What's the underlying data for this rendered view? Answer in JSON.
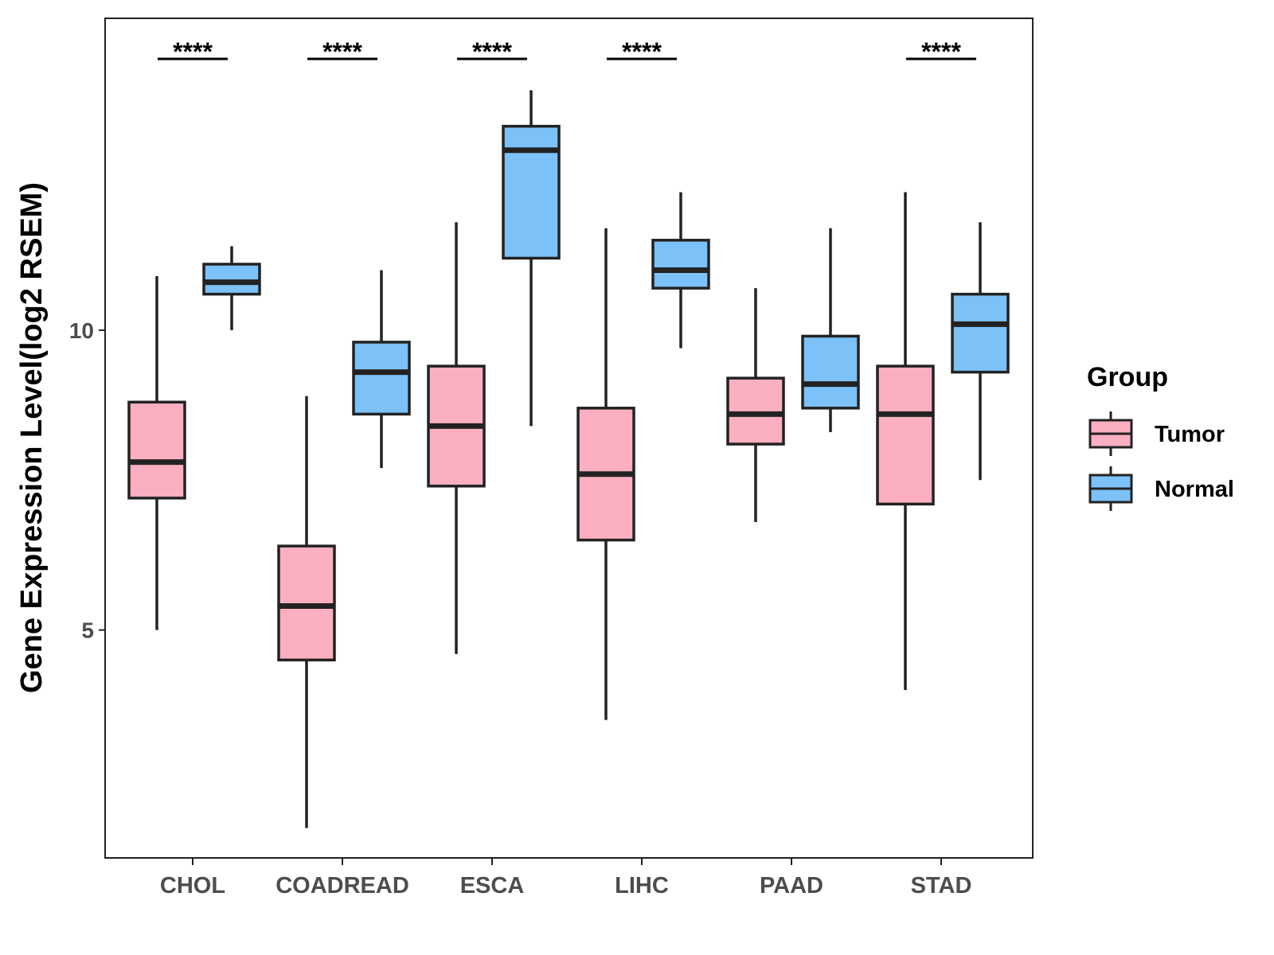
{
  "chart_data": {
    "type": "boxplot",
    "title": "",
    "xlabel": "",
    "ylabel": "Gene Expression Level(log2 RSEM)",
    "ylim": [
      1.2,
      15.2
    ],
    "yticks": [
      5,
      10
    ],
    "grid": false,
    "categories": [
      "CHOL",
      "COADREAD",
      "ESCA",
      "LIHC",
      "PAAD",
      "STAD"
    ],
    "significance": [
      "****",
      "****",
      "****",
      "****",
      "",
      "****"
    ],
    "legend": {
      "title": "Group",
      "position": "right",
      "entries": [
        {
          "name": "Tumor",
          "color": "#FBAFC0"
        },
        {
          "name": "Normal",
          "color": "#7CC1F8"
        }
      ]
    },
    "series": [
      {
        "name": "Tumor",
        "color": "#FBAFC0",
        "boxes": [
          {
            "min": 5.0,
            "q1": 7.2,
            "median": 7.8,
            "q3": 8.8,
            "max": 10.9
          },
          {
            "min": 1.7,
            "q1": 4.5,
            "median": 5.4,
            "q3": 6.4,
            "max": 8.9
          },
          {
            "min": 4.6,
            "q1": 7.4,
            "median": 8.4,
            "q3": 9.4,
            "max": 11.8
          },
          {
            "min": 3.5,
            "q1": 6.5,
            "median": 7.6,
            "q3": 8.7,
            "max": 11.7
          },
          {
            "min": 6.8,
            "q1": 8.1,
            "median": 8.6,
            "q3": 9.2,
            "max": 10.7
          },
          {
            "min": 4.0,
            "q1": 7.1,
            "median": 8.6,
            "q3": 9.4,
            "max": 12.3
          }
        ]
      },
      {
        "name": "Normal",
        "color": "#7CC1F8",
        "boxes": [
          {
            "min": 10.0,
            "q1": 10.6,
            "median": 10.8,
            "q3": 11.1,
            "max": 11.4
          },
          {
            "min": 7.7,
            "q1": 8.6,
            "median": 9.3,
            "q3": 9.8,
            "max": 11.0
          },
          {
            "min": 8.4,
            "q1": 11.2,
            "median": 13.0,
            "q3": 13.4,
            "max": 14.0
          },
          {
            "min": 9.7,
            "q1": 10.7,
            "median": 11.0,
            "q3": 11.5,
            "max": 12.3
          },
          {
            "min": 8.3,
            "q1": 8.7,
            "median": 9.1,
            "q3": 9.9,
            "max": 11.7
          },
          {
            "min": 7.5,
            "q1": 9.3,
            "median": 10.1,
            "q3": 10.6,
            "max": 11.8
          }
        ]
      }
    ]
  }
}
